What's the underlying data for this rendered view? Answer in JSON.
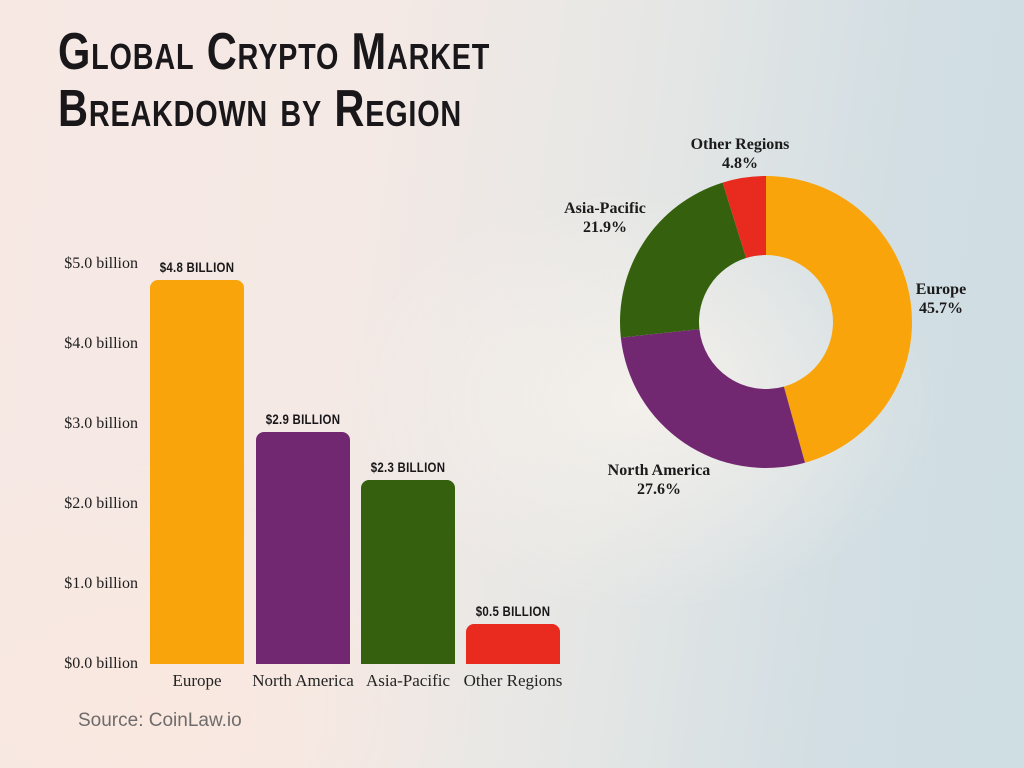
{
  "page": {
    "title_line1": "Global Crypto Market",
    "title_line2": "Breakdown by Region",
    "source": "Source: CoinLaw.io"
  },
  "colors": {
    "europe": "#F9A40A",
    "north_america": "#722871",
    "asia_pacific": "#35610E",
    "other_regions": "#E92A1E",
    "title_text": "#191719",
    "source_text": "#6f6b6b"
  },
  "chart_data": [
    {
      "type": "bar",
      "title": "Global Crypto Market Breakdown by Region",
      "categories": [
        "Europe",
        "North America",
        "Asia-Pacific",
        "Other Regions"
      ],
      "values": [
        4.8,
        2.9,
        2.3,
        0.5
      ],
      "value_labels": [
        "$4.8 billion",
        "$2.9 billion",
        "$2.3 billion",
        "$0.5 billion"
      ],
      "bar_colors": [
        "#F9A40A",
        "#722871",
        "#35610E",
        "#E92A1E"
      ],
      "y_ticks": [
        "$0.0 billion",
        "$1.0 billion",
        "$2.0 billion",
        "$3.0 billion",
        "$4.0 billion",
        "$5.0 billion"
      ],
      "ylim": [
        0,
        5
      ],
      "grid": false,
      "xlabel": "",
      "ylabel": ""
    },
    {
      "type": "pie",
      "style": "donut",
      "labels": [
        "Europe",
        "North America",
        "Asia-Pacific",
        "Other Regions"
      ],
      "values": [
        45.7,
        27.6,
        21.9,
        4.8
      ],
      "value_labels": [
        "45.7%",
        "27.6%",
        "21.9%",
        "4.8%"
      ],
      "colors": [
        "#F9A40A",
        "#722871",
        "#35610E",
        "#E92A1E"
      ],
      "start_angle_deg": 0,
      "direction": "clockwise",
      "legend": "none"
    }
  ]
}
